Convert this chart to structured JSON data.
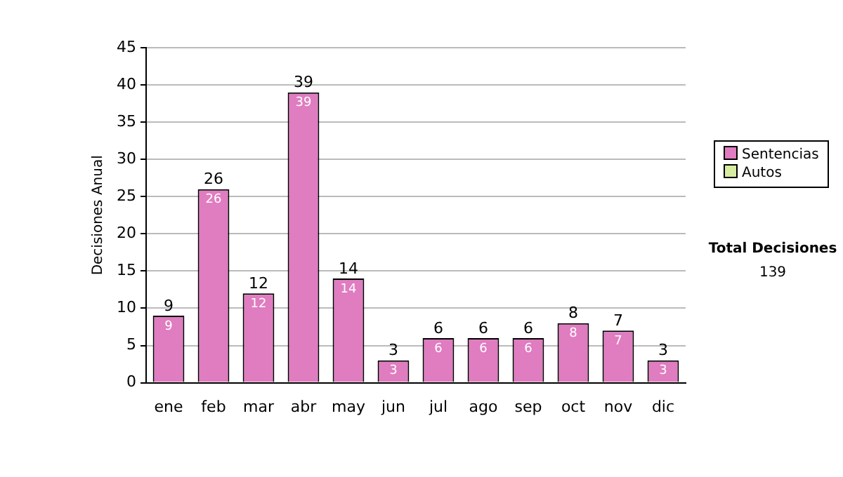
{
  "chart_data": {
    "type": "bar",
    "ylabel": "Decisiones Anual",
    "categories": [
      "ene",
      "feb",
      "mar",
      "abr",
      "may",
      "jun",
      "jul",
      "ago",
      "sep",
      "oct",
      "nov",
      "dic"
    ],
    "stacked": true,
    "series": [
      {
        "name": "Sentencias",
        "color": "#e07cc0",
        "values": [
          9,
          26,
          12,
          39,
          14,
          3,
          6,
          6,
          6,
          8,
          7,
          3
        ],
        "value_labels": [
          "9",
          "26",
          "12",
          "39",
          "14",
          "3",
          "6",
          "6",
          "6",
          "8",
          "7",
          "3"
        ]
      },
      {
        "name": "Autos",
        "color": "#d8eca0",
        "values": [
          0,
          0,
          0,
          0,
          0,
          0,
          0,
          0,
          0,
          0,
          0,
          0
        ]
      }
    ],
    "totals": [
      "9",
      "26",
      "12",
      "39",
      "14",
      "3",
      "6",
      "6",
      "6",
      "8",
      "7",
      "3"
    ],
    "ylim": [
      0,
      45
    ],
    "yticks": [
      0,
      5,
      10,
      15,
      20,
      25,
      30,
      35,
      40,
      45
    ],
    "grid": "y",
    "legend": "right",
    "annotations": [
      "Total Decisiones",
      "139"
    ]
  }
}
